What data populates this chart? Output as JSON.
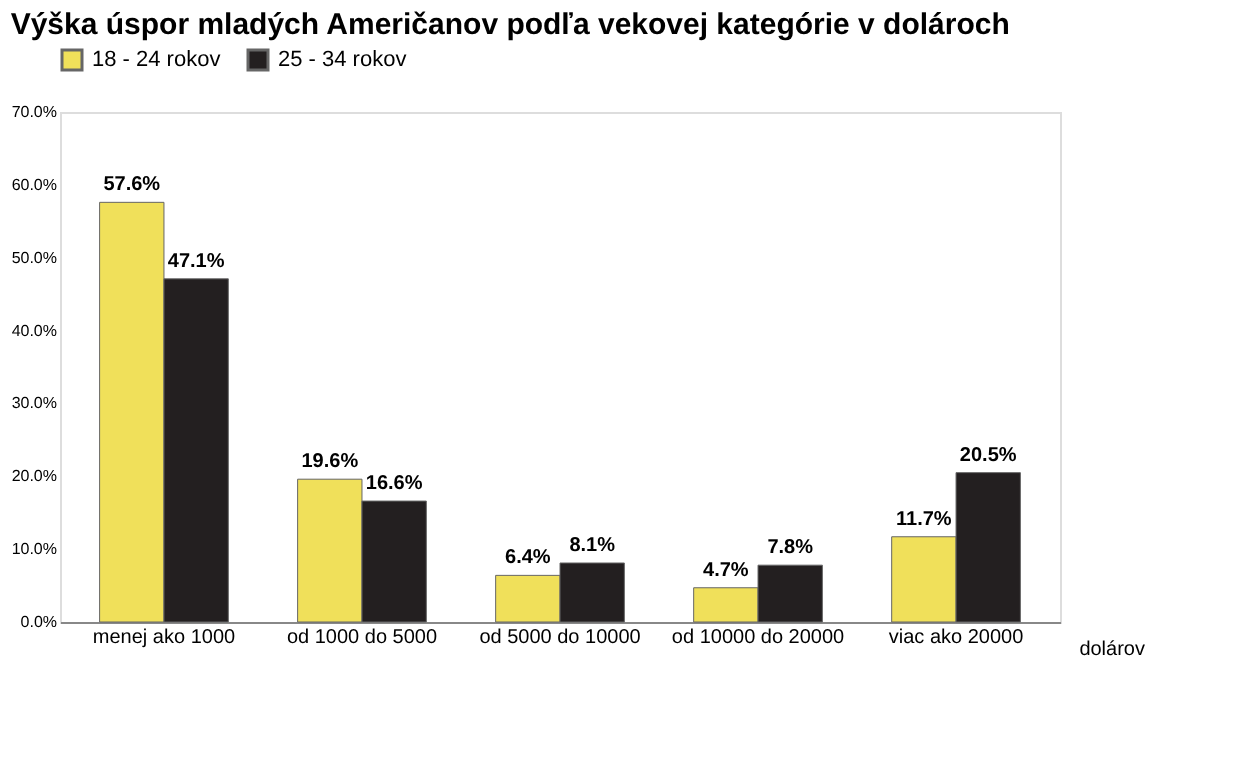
{
  "chart_data": {
    "type": "bar",
    "title": "Výška úspor mladých Američanov podľa vekovej kategórie v dolároch",
    "xlabel": "dolárov",
    "categories": [
      "menej ako 1000",
      "od 1000 do 5000",
      "od 5000 do 10000",
      "od 10000 do 20000",
      "viac ako 20000"
    ],
    "series": [
      {
        "name": "18 - 24 rokov",
        "color": "#f0e05a",
        "values": [
          57.6,
          19.6,
          6.4,
          4.7,
          11.7
        ],
        "value_labels": [
          "57.6%",
          "19.6%",
          "6.4%",
          "4.7%",
          "11.7%"
        ]
      },
      {
        "name": "25 - 34 rokov",
        "color": "#231f20",
        "values": [
          47.1,
          16.6,
          8.1,
          7.8,
          20.5
        ],
        "value_labels": [
          "47.1%",
          "16.6%",
          "8.1%",
          "7.8%",
          "20.5%"
        ]
      }
    ],
    "ylim": [
      0,
      70
    ],
    "yticks": [
      {
        "value": 0,
        "label": "0.0%"
      },
      {
        "value": 10,
        "label": "10.0%"
      },
      {
        "value": 20,
        "label": "20.0%"
      },
      {
        "value": 30,
        "label": "30.0%"
      },
      {
        "value": 40,
        "label": "40.0%"
      },
      {
        "value": 50,
        "label": "50.0%"
      },
      {
        "value": 60,
        "label": "60.0%"
      },
      {
        "value": 70,
        "label": "70.0%"
      }
    ],
    "grid": false,
    "legend": "top"
  }
}
